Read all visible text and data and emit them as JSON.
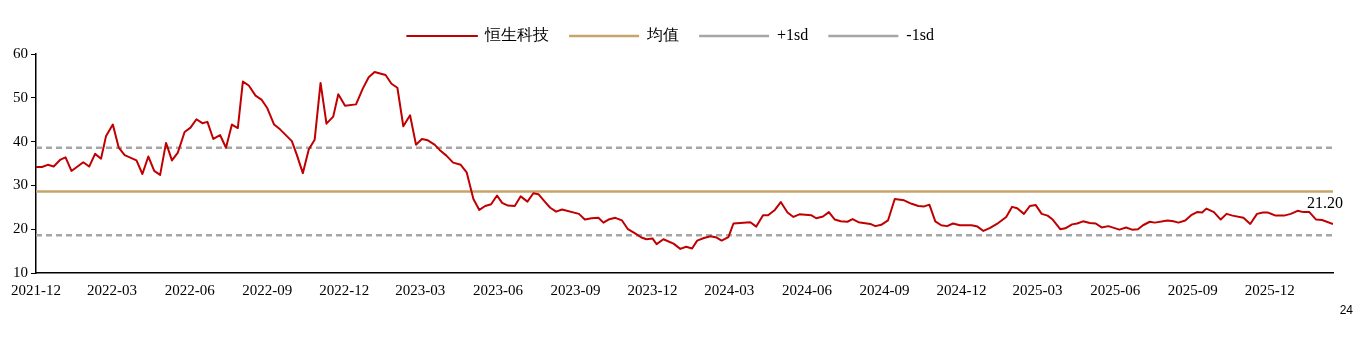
{
  "chart_data": {
    "type": "line",
    "legend": "top",
    "marker": "none",
    "grid": false,
    "ylim": [
      10,
      60
    ],
    "yticks": [
      10,
      20,
      30,
      40,
      50,
      60
    ],
    "xlim": [
      "2021-12-01",
      "2026-02-14"
    ],
    "xticks": [
      "2021-12",
      "2022-03",
      "2022-06",
      "2022-09",
      "2022-12",
      "2023-03",
      "2023-06",
      "2023-09",
      "2023-12",
      "2024-03",
      "2024-06",
      "2024-09",
      "2024-12",
      "2025-03",
      "2025-06",
      "2025-09",
      "2025-12"
    ],
    "annotations": [
      "24"
    ],
    "ref_lines": [
      {
        "axis": "y",
        "value": 28.6,
        "label": "均值",
        "color": "#c9a46a",
        "line_style": "solid"
      },
      {
        "axis": "y",
        "value": 38.6,
        "label": "+1sd",
        "color": "#a6a6a6",
        "line_style": "dashed"
      },
      {
        "axis": "y",
        "value": 18.6,
        "label": "-1sd",
        "color": "#a6a6a6",
        "line_style": "dashed"
      }
    ],
    "series": [
      {
        "name": "恒生科技",
        "color": "#c00000",
        "line_style": "solid",
        "x": [
          "2021-12-01",
          "2021-12-08",
          "2021-12-15",
          "2021-12-22",
          "2021-12-30",
          "2022-01-05",
          "2022-01-12",
          "2022-01-26",
          "2022-02-02",
          "2022-02-09",
          "2022-02-16",
          "2022-02-22",
          "2022-03-02",
          "2022-03-09",
          "2022-03-16",
          "2022-03-30",
          "2022-04-06",
          "2022-04-13",
          "2022-04-20",
          "2022-04-27",
          "2022-05-04",
          "2022-05-11",
          "2022-05-18",
          "2022-05-26",
          "2022-06-02",
          "2022-06-09",
          "2022-06-16",
          "2022-06-22",
          "2022-06-29",
          "2022-07-07",
          "2022-07-14",
          "2022-07-21",
          "2022-07-28",
          "2022-08-03",
          "2022-08-10",
          "2022-08-18",
          "2022-08-25",
          "2022-09-01",
          "2022-09-09",
          "2022-09-16",
          "2022-09-30",
          "2022-10-06",
          "2022-10-13",
          "2022-10-20",
          "2022-10-27",
          "2022-11-03",
          "2022-11-10",
          "2022-11-18",
          "2022-11-24",
          "2022-12-02",
          "2022-12-15",
          "2022-12-23",
          "2022-12-30",
          "2023-01-06",
          "2023-01-19",
          "2023-01-26",
          "2023-02-02",
          "2023-02-09",
          "2023-02-17",
          "2023-02-24",
          "2023-03-03",
          "2023-03-10",
          "2023-03-18",
          "2023-03-24",
          "2023-04-01",
          "2023-04-09",
          "2023-04-18",
          "2023-04-25",
          "2023-05-03",
          "2023-05-10",
          "2023-05-17",
          "2023-05-24",
          "2023-05-31",
          "2023-06-06",
          "2023-06-13",
          "2023-06-21",
          "2023-06-28",
          "2023-07-06",
          "2023-07-13",
          "2023-07-19",
          "2023-07-27",
          "2023-08-02",
          "2023-08-09",
          "2023-08-16",
          "2023-09-05",
          "2023-09-12",
          "2023-09-20",
          "2023-09-28",
          "2023-10-04",
          "2023-10-10",
          "2023-10-18",
          "2023-10-26",
          "2023-11-02",
          "2023-11-10",
          "2023-11-18",
          "2023-11-24",
          "2023-12-01",
          "2023-12-06",
          "2023-12-14",
          "2023-12-26",
          "2024-01-03",
          "2024-01-10",
          "2024-01-17",
          "2024-01-23",
          "2024-01-31",
          "2024-02-08",
          "2024-02-15",
          "2024-02-21",
          "2024-02-29",
          "2024-03-06",
          "2024-03-26",
          "2024-04-02",
          "2024-04-10",
          "2024-04-16",
          "2024-04-24",
          "2024-05-01",
          "2024-05-09",
          "2024-05-16",
          "2024-05-23",
          "2024-06-06",
          "2024-06-12",
          "2024-06-20",
          "2024-06-27",
          "2024-07-04",
          "2024-07-11",
          "2024-07-19",
          "2024-07-25",
          "2024-08-01",
          "2024-08-15",
          "2024-08-21",
          "2024-08-28",
          "2024-09-05",
          "2024-09-13",
          "2024-09-24",
          "2024-10-03",
          "2024-10-11",
          "2024-10-18",
          "2024-10-24",
          "2024-10-31",
          "2024-11-07",
          "2024-11-14",
          "2024-11-21",
          "2024-11-29",
          "2024-12-13",
          "2024-12-20",
          "2024-12-27",
          "2025-01-04",
          "2025-01-12",
          "2025-01-23",
          "2025-01-30",
          "2025-02-05",
          "2025-02-13",
          "2025-02-20",
          "2025-02-27",
          "2025-03-06",
          "2025-03-13",
          "2025-03-19",
          "2025-03-28",
          "2025-04-03",
          "2025-04-11",
          "2025-04-17",
          "2025-04-24",
          "2025-05-02",
          "2025-05-09",
          "2025-05-16",
          "2025-05-24",
          "2025-06-06",
          "2025-06-14",
          "2025-06-21",
          "2025-06-28",
          "2025-07-04",
          "2025-07-12",
          "2025-07-18",
          "2025-08-02",
          "2025-08-09",
          "2025-08-15",
          "2025-08-23",
          "2025-08-30",
          "2025-09-06",
          "2025-09-12",
          "2025-09-17",
          "2025-09-26",
          "2025-10-04",
          "2025-10-11",
          "2025-10-18",
          "2025-10-31",
          "2025-11-08",
          "2025-11-16",
          "2025-11-23",
          "2025-11-29",
          "2025-12-08",
          "2025-12-18",
          "2025-12-26",
          "2026-01-03",
          "2026-01-10",
          "2026-01-17",
          "2026-01-25",
          "2026-02-01",
          "2026-02-14"
        ],
        "values": [
          34.2,
          34.2,
          34.7,
          34.3,
          35.9,
          36.4,
          33.3,
          35.3,
          34.3,
          37.2,
          36.1,
          41.3,
          43.9,
          38.6,
          36.9,
          35.7,
          32.6,
          36.6,
          33.3,
          32.4,
          39.7,
          35.7,
          37.5,
          42.2,
          43.2,
          45.1,
          44.2,
          44.5,
          40.6,
          41.5,
          38.6,
          43.9,
          43.1,
          53.7,
          52.8,
          50.5,
          49.6,
          47.6,
          43.9,
          42.8,
          40.1,
          36.9,
          32.8,
          38.2,
          40.4,
          53.4,
          44.1,
          45.7,
          50.8,
          48.2,
          48.5,
          52.1,
          54.7,
          55.9,
          55.2,
          53.2,
          52.3,
          43.5,
          46.0,
          39.3,
          40.6,
          40.3,
          39.3,
          38.1,
          36.8,
          35.2,
          34.7,
          33.0,
          26.9,
          24.4,
          25.3,
          25.7,
          27.7,
          26.0,
          25.4,
          25.3,
          27.5,
          26.3,
          28.2,
          28.0,
          26.2,
          24.9,
          24.0,
          24.5,
          23.5,
          22.2,
          22.5,
          22.6,
          21.5,
          22.2,
          22.6,
          22.0,
          20.0,
          19.1,
          18.1,
          17.7,
          17.9,
          16.6,
          17.7,
          16.7,
          15.5,
          16.0,
          15.6,
          17.4,
          18.0,
          18.4,
          18.1,
          17.4,
          18.2,
          21.3,
          21.6,
          20.6,
          23.2,
          23.2,
          24.4,
          26.2,
          23.8,
          22.8,
          23.4,
          23.2,
          22.5,
          22.9,
          23.9,
          22.2,
          21.8,
          21.7,
          22.3,
          21.6,
          21.2,
          20.7,
          21.0,
          22.0,
          26.9,
          26.6,
          25.8,
          25.3,
          25.2,
          25.6,
          21.8,
          20.9,
          20.7,
          21.3,
          20.9,
          20.9,
          20.6,
          19.6,
          20.3,
          21.2,
          22.8,
          25.1,
          24.8,
          23.5,
          25.3,
          25.5,
          23.5,
          23.1,
          22.2,
          20.0,
          20.2,
          21.1,
          21.3,
          21.8,
          21.4,
          21.3,
          20.4,
          20.7,
          19.9,
          20.4,
          19.9,
          20.0,
          20.9,
          21.7,
          21.5,
          22.0,
          21.8,
          21.5,
          22.0,
          23.2,
          23.9,
          23.8,
          24.7,
          23.9,
          22.2,
          23.5,
          23.1,
          22.6,
          21.2,
          23.5,
          23.8,
          23.8,
          23.1,
          23.1,
          23.5,
          24.2,
          23.9,
          23.9,
          22.2,
          22.1,
          21.2
        ],
        "value_labels": [
          null,
          null,
          null,
          null,
          null,
          null,
          null,
          null,
          null,
          null,
          null,
          null,
          null,
          null,
          null,
          null,
          null,
          null,
          null,
          null,
          null,
          null,
          null,
          null,
          null,
          null,
          null,
          null,
          null,
          null,
          null,
          null,
          null,
          null,
          null,
          null,
          null,
          null,
          null,
          null,
          null,
          null,
          null,
          null,
          null,
          null,
          null,
          null,
          null,
          null,
          null,
          null,
          null,
          null,
          null,
          null,
          null,
          null,
          null,
          null,
          null,
          null,
          null,
          null,
          null,
          null,
          null,
          null,
          null,
          null,
          null,
          null,
          null,
          null,
          null,
          null,
          null,
          null,
          null,
          null,
          null,
          null,
          null,
          null,
          null,
          null,
          null,
          null,
          null,
          null,
          null,
          null,
          null,
          null,
          null,
          null,
          null,
          null,
          null,
          null,
          null,
          null,
          null,
          null,
          null,
          null,
          null,
          null,
          null,
          null,
          null,
          null,
          null,
          null,
          null,
          null,
          null,
          null,
          null,
          null,
          null,
          null,
          null,
          null,
          null,
          null,
          null,
          null,
          null,
          null,
          null,
          null,
          null,
          null,
          null,
          null,
          null,
          null,
          null,
          null,
          null,
          null,
          null,
          null,
          null,
          null,
          null,
          null,
          null,
          null,
          null,
          null,
          null,
          null,
          null,
          null,
          null,
          null,
          null,
          null,
          null,
          null,
          null,
          null,
          null,
          null,
          null,
          null,
          null,
          null,
          null,
          null,
          null,
          null,
          null,
          null,
          null,
          null,
          null,
          null,
          null,
          null,
          null,
          null,
          null,
          null,
          null,
          null,
          null,
          null,
          null,
          null,
          null,
          null,
          null,
          null,
          null,
          null,
          "21.20"
        ]
      }
    ]
  }
}
